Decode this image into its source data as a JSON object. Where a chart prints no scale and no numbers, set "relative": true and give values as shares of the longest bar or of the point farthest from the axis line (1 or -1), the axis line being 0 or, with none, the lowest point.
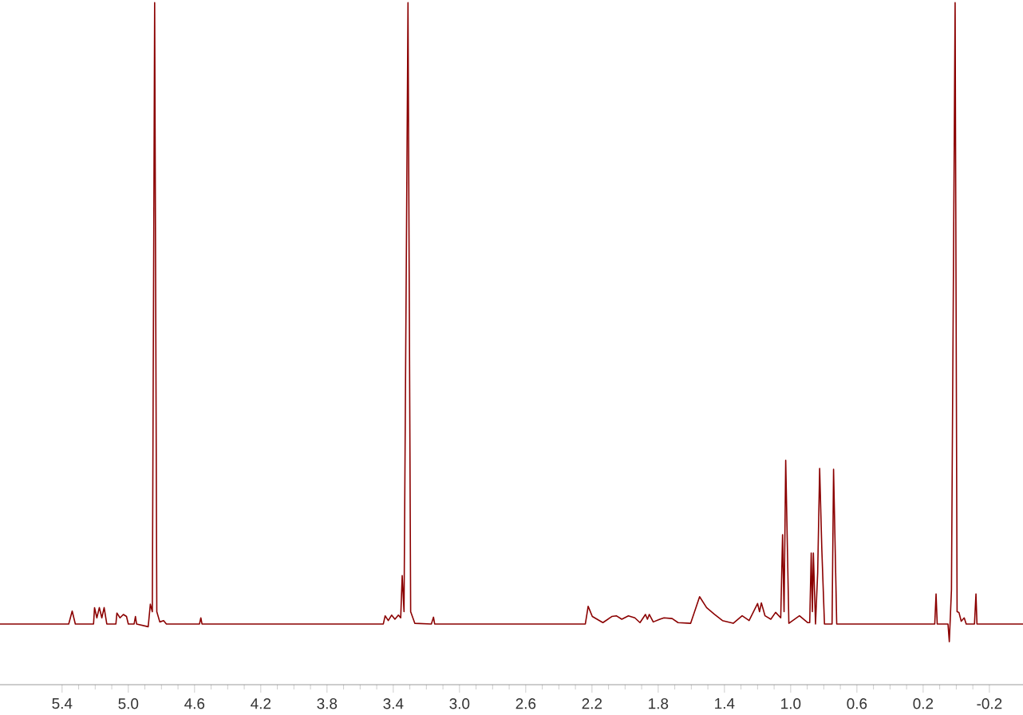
{
  "chart_data": {
    "type": "line",
    "relative": true,
    "color": "#8b0000",
    "xlim": [
      5.775,
      -0.403
    ],
    "xticks": [
      {
        "value": 5.4,
        "label": "5.4"
      },
      {
        "value": 5.0,
        "label": "5.0"
      },
      {
        "value": 4.6,
        "label": "4.6"
      },
      {
        "value": 4.2,
        "label": "4.2"
      },
      {
        "value": 3.8,
        "label": "3.8"
      },
      {
        "value": 3.4,
        "label": "3.4"
      },
      {
        "value": 3.0,
        "label": "3.0"
      },
      {
        "value": 2.6,
        "label": "2.6"
      },
      {
        "value": 2.2,
        "label": "2.2"
      },
      {
        "value": 1.8,
        "label": "1.8"
      },
      {
        "value": 1.4,
        "label": "1.4"
      },
      {
        "value": 1.0,
        "label": "1.0"
      },
      {
        "value": 0.6,
        "label": "0.6"
      },
      {
        "value": 0.2,
        "label": "0.2"
      },
      {
        "value": -0.2,
        "label": "-0.2"
      }
    ],
    "x": [
      5.775,
      5.36,
      5.339,
      5.32,
      5.21,
      5.204,
      5.19,
      5.175,
      5.16,
      5.146,
      5.13,
      5.075,
      5.069,
      5.05,
      5.03,
      5.011,
      5.0,
      4.965,
      4.957,
      4.95,
      4.88,
      4.867,
      4.855,
      4.841,
      4.828,
      4.81,
      4.787,
      4.77,
      4.57,
      4.562,
      4.555,
      3.46,
      3.449,
      3.43,
      3.41,
      3.39,
      3.369,
      3.355,
      3.346,
      3.335,
      3.311,
      3.295,
      3.27,
      3.17,
      3.157,
      3.15,
      2.24,
      2.223,
      2.198,
      2.134,
      2.08,
      2.053,
      2.02,
      1.98,
      1.941,
      1.91,
      1.877,
      1.865,
      1.854,
      1.83,
      1.79,
      1.765,
      1.716,
      1.68,
      1.604,
      1.55,
      1.508,
      1.46,
      1.412,
      1.347,
      1.293,
      1.251,
      1.2,
      1.188,
      1.177,
      1.155,
      1.12,
      1.091,
      1.06,
      1.049,
      1.04,
      1.03,
      1.011,
      0.947,
      0.898,
      0.885,
      0.876,
      0.869,
      0.863,
      0.85,
      0.837,
      0.825,
      0.812,
      0.796,
      0.75,
      0.741,
      0.722,
      0.13,
      0.122,
      0.115,
      0.05,
      0.042,
      0.029,
      0.007,
      -0.005,
      -0.016,
      -0.03,
      -0.048,
      -0.06,
      -0.11,
      -0.119,
      -0.125,
      -0.403
    ],
    "values": [
      0.089,
      0.089,
      0.108,
      0.089,
      0.089,
      0.113,
      0.098,
      0.113,
      0.098,
      0.113,
      0.089,
      0.089,
      0.105,
      0.098,
      0.103,
      0.1,
      0.089,
      0.089,
      0.1,
      0.089,
      0.085,
      0.118,
      0.107,
      1,
      0.107,
      0.092,
      0.094,
      0.089,
      0.089,
      0.098,
      0.089,
      0.089,
      0.101,
      0.094,
      0.102,
      0.096,
      0.102,
      0.098,
      0.16,
      0.107,
      1,
      0.107,
      0.09,
      0.089,
      0.099,
      0.089,
      0.089,
      0.115,
      0.1,
      0.091,
      0.1,
      0.101,
      0.096,
      0.101,
      0.098,
      0.091,
      0.103,
      0.096,
      0.103,
      0.092,
      0.096,
      0.098,
      0.097,
      0.091,
      0.09,
      0.129,
      0.113,
      0.103,
      0.094,
      0.09,
      0.101,
      0.094,
      0.119,
      0.107,
      0.12,
      0.101,
      0.096,
      0.106,
      0.098,
      0.22,
      0.107,
      0.329,
      0.09,
      0.101,
      0.091,
      0.091,
      0.193,
      0.107,
      0.193,
      0.089,
      0.164,
      0.317,
      0.199,
      0.089,
      0.089,
      0.316,
      0.089,
      0.089,
      0.133,
      0.089,
      0.089,
      0.063,
      0.139,
      1,
      0.107,
      0.106,
      0.093,
      0.098,
      0.089,
      0.089,
      0.133,
      0.089,
      0.089
    ]
  }
}
